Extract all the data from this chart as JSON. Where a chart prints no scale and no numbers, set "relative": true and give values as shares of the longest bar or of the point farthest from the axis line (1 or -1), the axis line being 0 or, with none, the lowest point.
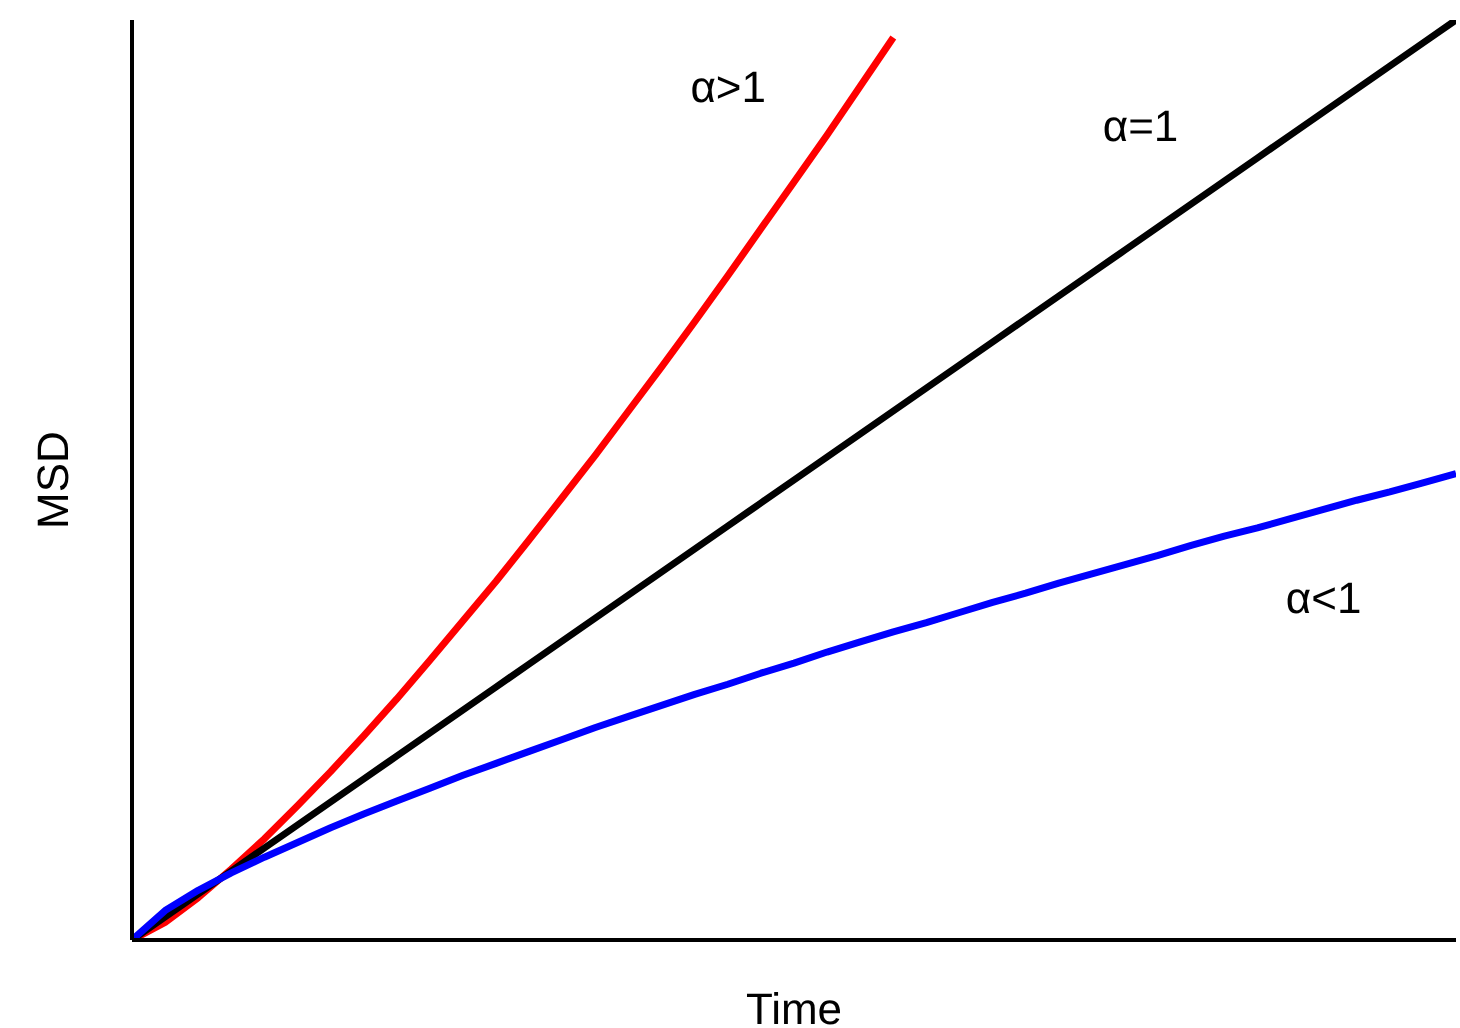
{
  "chart_data": {
    "type": "line",
    "relative": true,
    "xlabel": "Time",
    "ylabel": "MSD",
    "grid": false,
    "legend": false,
    "marker": "none",
    "line_style": "solid",
    "categories": [
      null,
      null,
      null,
      null,
      null,
      null,
      null,
      null,
      null,
      null,
      null,
      null,
      null,
      null,
      null,
      null,
      null,
      null,
      null,
      null,
      null,
      null,
      null,
      null,
      null,
      null,
      null,
      null,
      null,
      null,
      null,
      null,
      null,
      null,
      null,
      null,
      null,
      null,
      null,
      null,
      null
    ],
    "series": [
      {
        "name": "α>1",
        "color": "#ff0000",
        "values": [
          0,
          0.019,
          0.046,
          0.077,
          0.11,
          0.146,
          0.183,
          0.222,
          0.262,
          0.304,
          0.347,
          0.39,
          0.435,
          0.481,
          0.527,
          0.575,
          0.623,
          0.672,
          0.722,
          0.773,
          0.824,
          0.875,
          0.928,
          0.981,
          null,
          null,
          null,
          null,
          null,
          null,
          null,
          null,
          null,
          null,
          null,
          null,
          null,
          null,
          null,
          null,
          null
        ]
      },
      {
        "name": "α=1",
        "color": "#000000",
        "values": [
          0,
          0.025,
          0.05,
          0.075,
          0.1,
          0.125,
          0.15,
          0.175,
          0.2,
          0.225,
          0.25,
          0.275,
          0.3,
          0.325,
          0.35,
          0.375,
          0.4,
          0.425,
          0.45,
          0.475,
          0.5,
          0.525,
          0.55,
          0.575,
          0.6,
          0.625,
          0.65,
          0.675,
          0.7,
          0.725,
          0.75,
          0.775,
          0.8,
          0.825,
          0.85,
          0.875,
          0.9,
          0.925,
          0.95,
          0.975,
          1
        ]
      },
      {
        "name": "α<1",
        "color": "#0000ff",
        "values": [
          0,
          0.032,
          0.054,
          0.073,
          0.09,
          0.106,
          0.122,
          0.137,
          0.151,
          0.165,
          0.179,
          0.192,
          0.205,
          0.218,
          0.231,
          0.243,
          0.255,
          0.267,
          0.278,
          0.29,
          0.301,
          0.313,
          0.324,
          0.335,
          0.345,
          0.356,
          0.367,
          0.377,
          0.388,
          0.398,
          0.408,
          0.418,
          0.429,
          0.439,
          0.448,
          0.458,
          0.468,
          0.478,
          0.487,
          0.497,
          0.507
        ]
      }
    ]
  }
}
